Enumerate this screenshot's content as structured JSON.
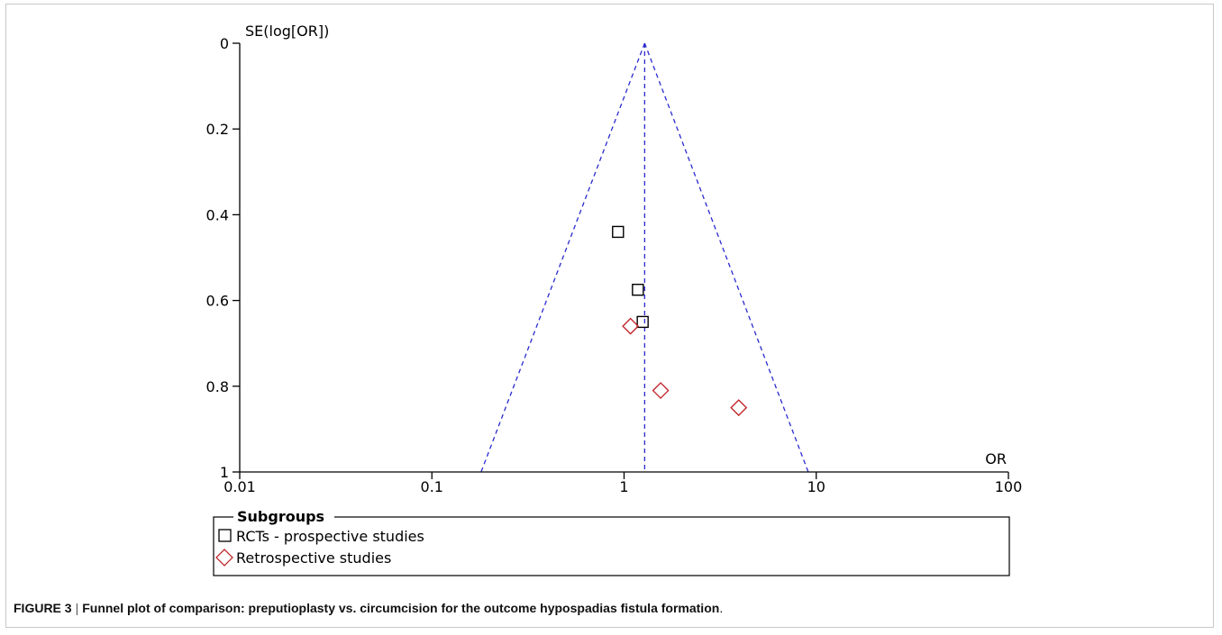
{
  "chart_data": {
    "type": "scatter",
    "subtype": "funnel",
    "xlabel": "OR",
    "ylabel": "SE(log[OR])",
    "x_scale": "log",
    "xlim": [
      0.01,
      100
    ],
    "ylim": [
      0,
      1
    ],
    "y_inverted": true,
    "x_ticks": [
      "0.01",
      "0.1",
      "1",
      "10",
      "100"
    ],
    "y_ticks": [
      "0",
      "0.2",
      "0.4",
      "0.6",
      "0.8",
      "1"
    ],
    "pooled_or": 1.28,
    "funnel_lines": {
      "color": "#2a2acf",
      "style": "dashed"
    },
    "series": [
      {
        "name": "RCTs - prospective studies",
        "marker": "square",
        "color": "#000000",
        "points": [
          {
            "x": 0.93,
            "y": 0.44
          },
          {
            "x": 1.18,
            "y": 0.575
          },
          {
            "x": 1.25,
            "y": 0.65
          }
        ]
      },
      {
        "name": "Retrospective studies",
        "marker": "diamond",
        "color": "#c0282d",
        "points": [
          {
            "x": 1.08,
            "y": 0.66
          },
          {
            "x": 1.55,
            "y": 0.81
          },
          {
            "x": 3.95,
            "y": 0.85
          }
        ]
      }
    ],
    "legend": {
      "title": "Subgroups",
      "position": "bottom"
    }
  },
  "caption": {
    "label": "FIGURE 3",
    "separator": "|",
    "text": "Funnel plot of comparison: preputioplasty vs. circumcision for the outcome hypospadias fistula formation",
    "end": "."
  }
}
